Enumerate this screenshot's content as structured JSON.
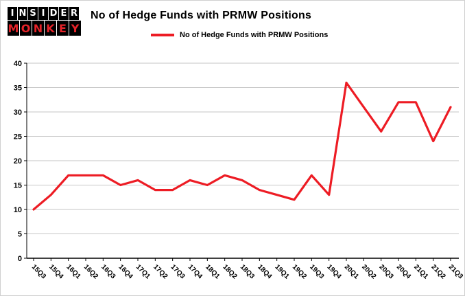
{
  "logo": {
    "line1": "INSIDER",
    "line2": "MONKEY"
  },
  "title": "No of Hedge Funds with PRMW Positions",
  "legend": "No of Hedge Funds with PRMW Positions",
  "colors": {
    "line": "#ed1c24",
    "logo_red": "#e62329",
    "grid": "#c6c6c6",
    "axis": "#000000",
    "text": "#000000",
    "background": "#ffffff"
  },
  "chart_data": {
    "type": "line",
    "title": "No of Hedge Funds with PRMW Positions",
    "xlabel": "",
    "ylabel": "",
    "categories": [
      "15Q3",
      "15Q4",
      "16Q1",
      "16Q2",
      "16Q3",
      "16Q4",
      "17Q1",
      "17Q2",
      "17Q3",
      "17Q4",
      "18Q1",
      "18Q2",
      "18Q3",
      "18Q4",
      "19Q1",
      "19Q2",
      "19Q3",
      "19Q4",
      "20Q1",
      "20Q2",
      "20Q3",
      "20Q4",
      "21Q1",
      "21Q2",
      "21Q3"
    ],
    "series": [
      {
        "name": "No of Hedge Funds with PRMW Positions",
        "values": [
          10,
          13,
          17,
          17,
          17,
          15,
          16,
          14,
          14,
          16,
          15,
          17,
          16,
          14,
          13,
          12,
          17,
          13,
          36,
          31,
          26,
          32,
          32,
          24,
          31
        ]
      }
    ],
    "ylim": [
      0,
      40
    ],
    "yticks": [
      0,
      5,
      10,
      15,
      20,
      25,
      30,
      35,
      40
    ],
    "grid": true,
    "legend_position": "top"
  }
}
